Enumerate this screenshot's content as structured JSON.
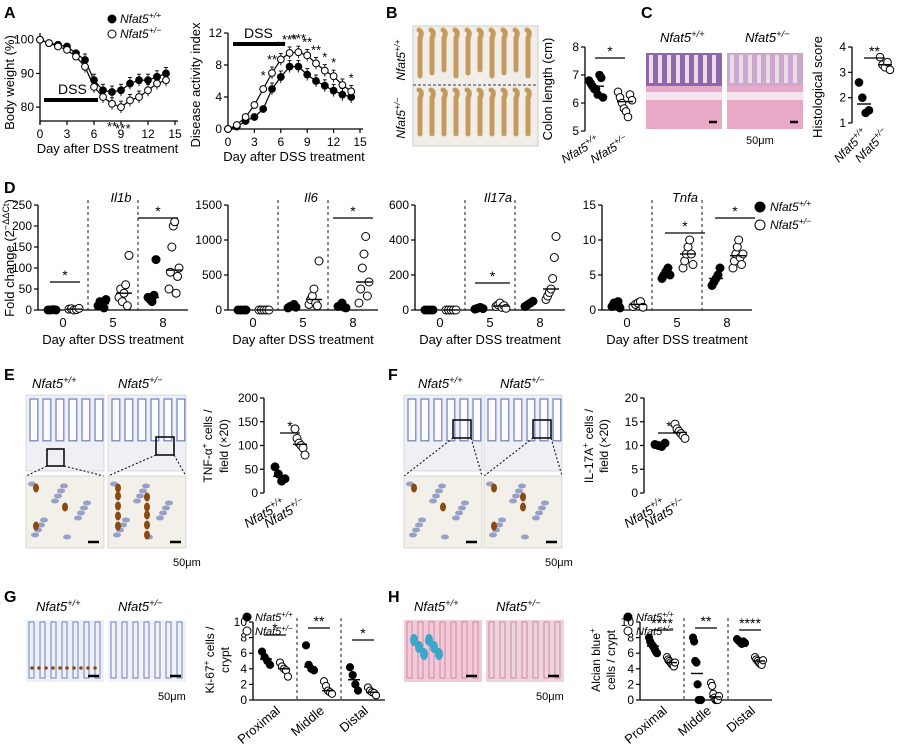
{
  "palette": {
    "filled": "#000000",
    "open": "#ffffff",
    "he_pink": "#e7a9c6",
    "he_purple": "#7b5ea7",
    "ihc_bg": "#eef0f6",
    "ihc_blue": "#6f7fb8",
    "brown": "#8a4a12",
    "alcian": "#3aa6c9",
    "colon": "#c49a5e"
  },
  "panels": {
    "A": "A",
    "B": "B",
    "C": "C",
    "D": "D",
    "E": "E",
    "F": "F",
    "G": "G",
    "H": "H"
  },
  "genotypes": {
    "wt": "Nfat5+/+",
    "het": "Nfat5+/−",
    "wt_base": "Nfat5",
    "wt_sup": "+/+",
    "het_sup": "+/−"
  },
  "common": {
    "day_axis": "Day after DSS treatment",
    "dss": "DSS",
    "scale": "50μm"
  },
  "sig": {
    "s1": "*",
    "s2": "**",
    "s3": "***",
    "s4": "****"
  },
  "panelA": {
    "bw_ylabel": "Body weight (%)",
    "dai_ylabel": "Disease activity index",
    "bw_yticks": [
      "100",
      "90",
      "80"
    ],
    "dai_yticks": [
      "0",
      "4",
      "8",
      "12"
    ],
    "xticks": [
      "0",
      "3",
      "6",
      "9",
      "12",
      "15"
    ],
    "legend": [
      "Nfat5+/+",
      "Nfat5+/−"
    ]
  },
  "chart_data": [
    {
      "type": "line",
      "panel": "A-left",
      "ylabel": "Body weight (%)",
      "xlabel": "Day after DSS treatment",
      "xlim": [
        0,
        15
      ],
      "ylim": [
        75,
        102
      ],
      "x": [
        0,
        1,
        2,
        3,
        4,
        5,
        6,
        7,
        8,
        9,
        10,
        11,
        12,
        13,
        14
      ],
      "series": [
        {
          "name": "Nfat5+/+",
          "values": [
            100,
            99,
            98.5,
            98,
            96,
            94,
            88,
            85,
            84.5,
            85,
            87,
            88,
            88,
            89,
            90
          ]
        },
        {
          "name": "Nfat5+/−",
          "values": [
            100,
            99,
            98,
            97,
            95,
            92,
            86,
            83,
            81,
            80,
            82,
            83,
            85,
            87,
            88
          ]
        }
      ]
    },
    {
      "type": "line",
      "panel": "A-right",
      "ylabel": "Disease activity index",
      "xlabel": "Day after DSS treatment",
      "xlim": [
        0,
        15
      ],
      "ylim": [
        0,
        12
      ],
      "x": [
        0,
        1,
        2,
        3,
        4,
        5,
        6,
        7,
        8,
        9,
        10,
        11,
        12,
        13,
        14
      ],
      "series": [
        {
          "name": "Nfat5+/+",
          "values": [
            0,
            0.3,
            1,
            1.5,
            2.5,
            5,
            6.5,
            7.8,
            7.8,
            6.8,
            6,
            5.4,
            4.8,
            4.3,
            4
          ]
        },
        {
          "name": "Nfat5+/−",
          "values": [
            0,
            0.5,
            1.5,
            3,
            5,
            7,
            8.7,
            9.5,
            9.6,
            9.2,
            8.2,
            7.3,
            6.6,
            5.5,
            4.7
          ]
        }
      ]
    },
    {
      "type": "scatter",
      "panel": "B",
      "ylabel": "Colon length (cm)",
      "ylim": [
        5,
        8
      ],
      "yticks": [
        "5",
        "6",
        "7",
        "8"
      ],
      "categories": [
        "Nfat5+/+",
        "Nfat5+/−"
      ],
      "series": [
        {
          "name": "Nfat5+/+",
          "values": [
            6.8,
            6.7,
            6.6,
            6.5,
            6.5,
            6.3,
            7.0,
            6.9,
            6.2
          ]
        },
        {
          "name": "Nfat5+/−",
          "values": [
            6.4,
            6.2,
            6.0,
            5.8,
            5.7,
            5.5,
            6.3,
            6.1
          ]
        }
      ]
    },
    {
      "type": "scatter",
      "panel": "C",
      "ylabel": "Histological score",
      "ylim": [
        1,
        4
      ],
      "yticks": [
        "1",
        "2",
        "3",
        "4"
      ],
      "categories": [
        "Nfat5+/+",
        "Nfat5+/−"
      ],
      "series": [
        {
          "name": "Nfat5+/+",
          "values": [
            2.6,
            2.0,
            1.4,
            1.5
          ]
        },
        {
          "name": "Nfat5+/−",
          "values": [
            3.6,
            3.3,
            3.2,
            3.4,
            3.1
          ]
        }
      ]
    },
    {
      "type": "scatter",
      "panel": "D",
      "ylabel": "Fold change (2−ΔΔCt)",
      "genes": [
        {
          "gene": "Il1b",
          "ylim": [
            0,
            250
          ],
          "yticks": [
            "0",
            "50",
            "100",
            "150",
            "200",
            "250"
          ],
          "days": [
            "0",
            "5",
            "8"
          ],
          "wt": [
            [
              0,
              0,
              1,
              0
            ],
            [
              10,
              20,
              15,
              5,
              25
            ],
            [
              30,
              25,
              20,
              35,
              120
            ]
          ],
          "het": [
            [
              2,
              3,
              0,
              1,
              4
            ],
            [
              30,
              50,
              20,
              40,
              60,
              10,
              130
            ],
            [
              50,
              90,
              150,
              200,
              210,
              40,
              80,
              100
            ]
          ]
        },
        {
          "gene": "Il6",
          "ylim": [
            0,
            1500
          ],
          "yticks": [
            "0",
            "500",
            "1000",
            "1500"
          ],
          "days": [
            "0",
            "5",
            "8"
          ],
          "wt": [
            [
              0,
              0,
              0,
              0
            ],
            [
              30,
              50,
              60,
              80,
              40
            ],
            [
              50,
              60,
              100,
              40,
              30
            ]
          ],
          "het": [
            [
              0,
              0,
              0,
              0,
              0
            ],
            [
              80,
              150,
              200,
              300,
              100,
              60,
              700
            ],
            [
              100,
              300,
              600,
              800,
              1050,
              200,
              400
            ]
          ]
        },
        {
          "gene": "Il17a",
          "ylim": [
            0,
            600
          ],
          "yticks": [
            "0",
            "200",
            "400",
            "600"
          ],
          "days": [
            "0",
            "5",
            "8"
          ],
          "wt": [
            [
              0,
              0,
              0,
              0
            ],
            [
              5,
              10,
              15,
              8
            ],
            [
              20,
              30,
              40,
              50
            ]
          ],
          "het": [
            [
              0,
              0,
              0,
              0,
              0
            ],
            [
              20,
              30,
              40,
              15,
              25,
              10
            ],
            [
              60,
              80,
              100,
              120,
              180,
              300,
              420
            ]
          ]
        },
        {
          "gene": "Tnfa",
          "ylim": [
            0,
            15
          ],
          "yticks": [
            "0",
            "5",
            "10",
            "15"
          ],
          "days": [
            "0",
            "5",
            "8"
          ],
          "wt": [
            [
              0.5,
              1,
              0.8,
              1.2,
              0.3
            ],
            [
              4.5,
              5,
              5.5,
              6,
              5
            ],
            [
              3.5,
              4,
              4.5,
              5,
              6
            ]
          ],
          "het": [
            [
              0.5,
              0.8,
              1,
              1.2,
              0.4
            ],
            [
              6,
              7,
              8,
              9,
              10,
              8,
              6.5
            ],
            [
              6,
              7,
              8,
              9,
              10,
              7.5,
              6.5,
              8
            ]
          ]
        }
      ]
    },
    {
      "type": "scatter",
      "panel": "E",
      "ylabel": "TNF-α+ cells / field (×20)",
      "ylim": [
        0,
        200
      ],
      "yticks": [
        "0",
        "50",
        "100",
        "150",
        "200"
      ],
      "categories": [
        "Nfat5+/+",
        "Nfat5+/−"
      ],
      "series": [
        {
          "name": "Nfat5+/+",
          "values": [
            55,
            40,
            25,
            30
          ]
        },
        {
          "name": "Nfat5+/−",
          "values": [
            135,
            115,
            105,
            100,
            95,
            80
          ]
        }
      ]
    },
    {
      "type": "scatter",
      "panel": "F",
      "ylabel": "IL-17A+ cells / field (×20)",
      "ylim": [
        0,
        20
      ],
      "yticks": [
        "0",
        "5",
        "10",
        "15",
        "20"
      ],
      "categories": [
        "Nfat5+/+",
        "Nfat5+/−"
      ],
      "series": [
        {
          "name": "Nfat5+/+",
          "values": [
            10.2,
            10,
            9.8,
            10.5
          ]
        },
        {
          "name": "Nfat5+/−",
          "values": [
            14.5,
            13.5,
            13,
            12.5,
            12,
            11.5
          ]
        }
      ]
    },
    {
      "type": "scatter",
      "panel": "G",
      "ylabel": "Ki-67+ cells / crypt",
      "ylim": [
        0,
        10
      ],
      "yticks": [
        "0",
        "2",
        "4",
        "6",
        "8",
        "10"
      ],
      "categories": [
        "Proximal",
        "Middle",
        "Distal"
      ],
      "series": [
        {
          "name": "Nfat5+/+",
          "values": [
            [
              6.2,
              5.5,
              5.0,
              4.5
            ],
            [
              7.0,
              4.5,
              4.0,
              3.8
            ],
            [
              4.2,
              3.2,
              2.0,
              1.2
            ]
          ]
        },
        {
          "name": "Nfat5+/−",
          "values": [
            [
              4.8,
              4.3,
              4.0,
              3.8,
              3.0
            ],
            [
              2.4,
              1.8,
              1.2,
              1.0,
              0.8
            ],
            [
              1.6,
              1.2,
              1.0,
              0.9,
              0.6
            ]
          ]
        }
      ]
    },
    {
      "type": "scatter",
      "panel": "H",
      "ylabel": "Alcian blue+ cells / crypt",
      "ylim": [
        0,
        10
      ],
      "yticks": [
        "0",
        "2",
        "4",
        "6",
        "8",
        "10"
      ],
      "categories": [
        "Proximal",
        "Middle",
        "Distal"
      ],
      "series": [
        {
          "name": "Nfat5+/+",
          "values": [
            [
              8,
              7.5,
              7.2,
              7,
              6.8,
              6.5,
              6.2,
              6
            ],
            [
              8,
              7.5,
              5,
              4.8,
              2,
              0,
              0,
              0
            ],
            [
              7.8,
              7.6,
              7.4,
              7.2,
              7.5,
              7.3
            ]
          ]
        },
        {
          "name": "Nfat5+/−",
          "values": [
            [
              5.5,
              5.2,
              5.0,
              4.8,
              4.6,
              4.5,
              4.3,
              4.8
            ],
            [
              2.2,
              1.8,
              0.8,
              0.3,
              0,
              0,
              0,
              0.5
            ],
            [
              5.5,
              5.2,
              5,
              4.8,
              4.6,
              4.5,
              5.1
            ]
          ]
        }
      ]
    }
  ],
  "panelB": {
    "ylabel": "Colon length (cm)"
  },
  "panelC": {
    "ylabel": "Histological score"
  },
  "panelD": {
    "ylabel": "Fold change (2",
    "ylabel_sup": "−ΔΔCt",
    "ylabel_end": ")"
  },
  "panelE": {
    "ylabel1": "TNF-α",
    "ylabel1_sup": "+",
    "ylabel1_end": " cells /",
    "ylabel2": "field (×20)"
  },
  "panelF": {
    "ylabel1": "IL-17A",
    "ylabel1_sup": "+",
    "ylabel1_end": " cells /",
    "ylabel2": "field (×20)"
  },
  "panelG": {
    "ylabel1": "Ki-67",
    "ylabel1_sup": "+",
    "ylabel1_end": " cells /",
    "ylabel2": "crypt"
  },
  "panelH": {
    "ylabel1": "Alcian blue",
    "ylabel1_sup": "+",
    "ylabel2": "cells / crypt"
  }
}
